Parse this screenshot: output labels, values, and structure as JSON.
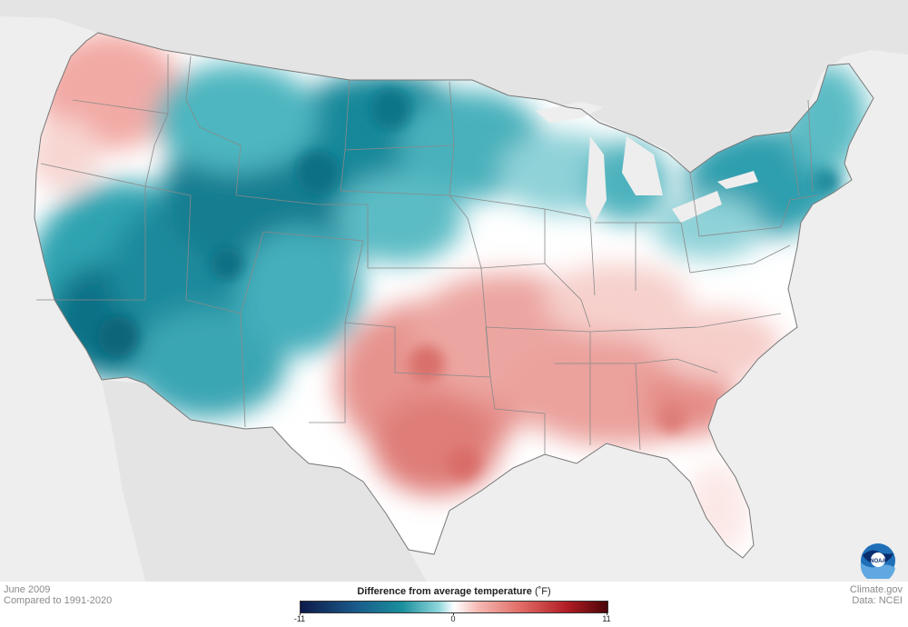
{
  "map": {
    "colors": {
      "land_background": "#eeeeee",
      "cold_strong": "#0e6f85",
      "cold": "#2fa3b0",
      "cold_light": "#a6e0e4",
      "neutral": "#ffffff",
      "warm_light": "#f6c8c4",
      "warm": "#e68a86"
    }
  },
  "labels": {
    "date": "June 2009",
    "baseline": "Compared to 1991-2020",
    "credit": "Climate.gov",
    "source": "Data: NCEI"
  },
  "legend": {
    "title": "Difference from average temperature",
    "unit": "(˚F)",
    "min": "-11",
    "mid": "0",
    "max": "11"
  },
  "logo": {
    "text": "NOAA"
  }
}
